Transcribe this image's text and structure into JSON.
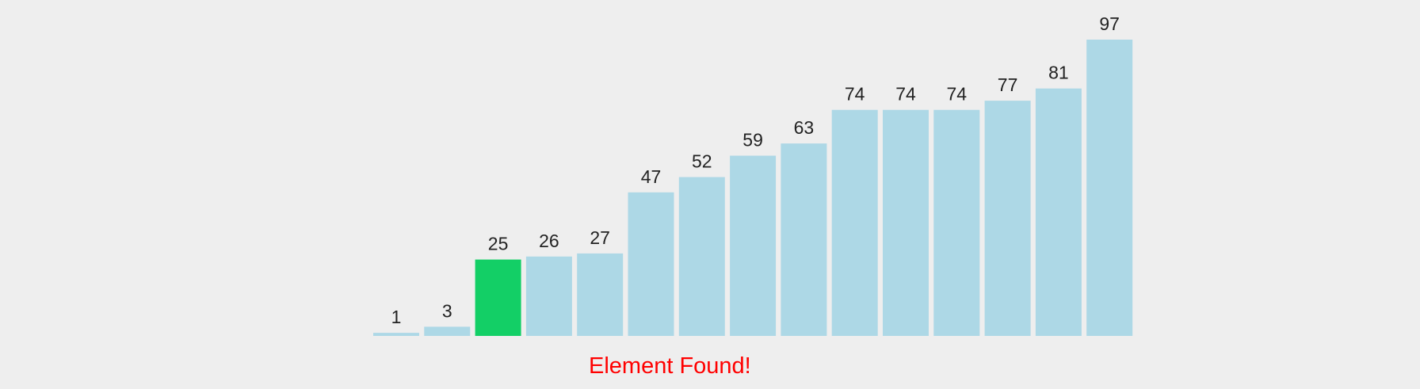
{
  "chart_data": {
    "type": "bar",
    "values": [
      1,
      3,
      25,
      26,
      27,
      47,
      52,
      59,
      63,
      74,
      74,
      74,
      77,
      81,
      97
    ],
    "highlight_index": 2,
    "ylim": [
      0,
      97
    ],
    "grid": false,
    "colors": {
      "bar": "#add8e6",
      "found": "#13cf66",
      "label": "#222222"
    }
  },
  "status": {
    "message": "Element Found!",
    "color": "#ff0000"
  },
  "background": "#eeeeee"
}
